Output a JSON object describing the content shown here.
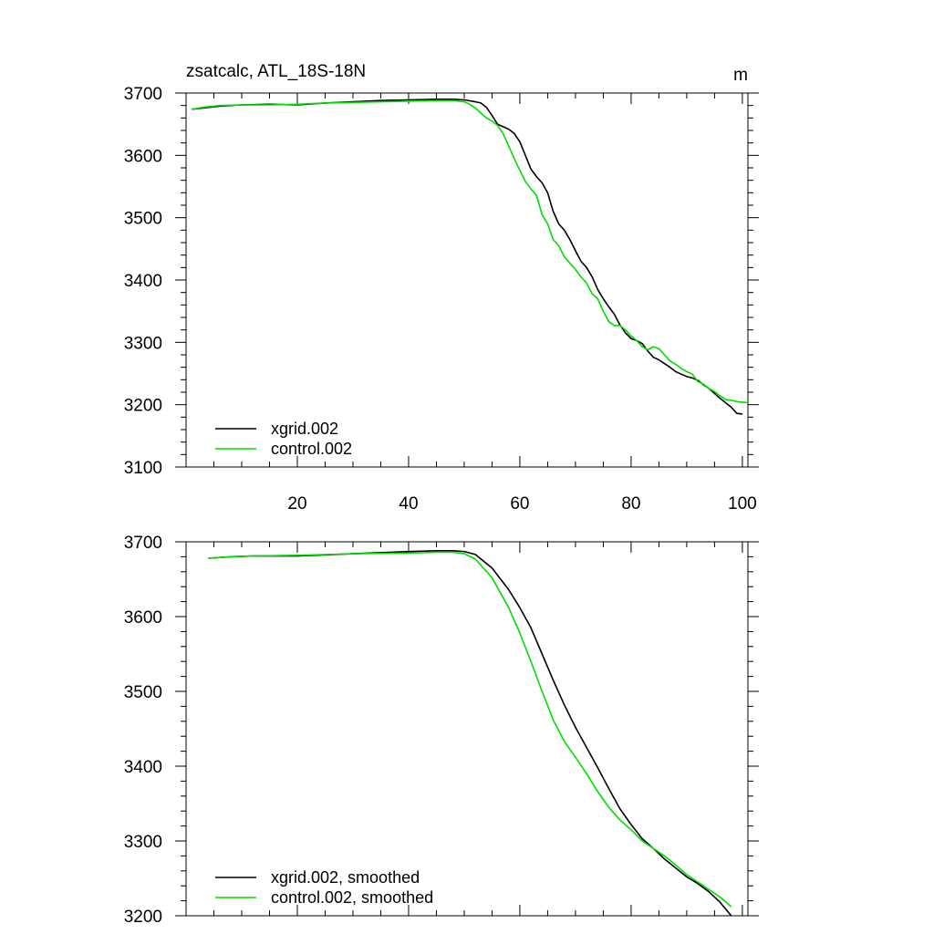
{
  "figure": {
    "title": "zsatcalc, ATL_18S-18N",
    "units": "m"
  },
  "colors": {
    "xgrid": "#000000",
    "control": "#00dd00",
    "axis": "#000000",
    "background": "#ffffff"
  },
  "chart_data": [
    {
      "type": "line",
      "panel": "top",
      "title": "zsatcalc, ATL_18S-18N",
      "units": "m",
      "xlim": [
        0,
        101
      ],
      "ylim": [
        3100,
        3700
      ],
      "xticks": [
        20,
        40,
        60,
        80,
        100
      ],
      "xtick_labels": [
        "20",
        "40",
        "60",
        "80",
        "100"
      ],
      "yticks": [
        3100,
        3200,
        3300,
        3400,
        3500,
        3600,
        3700
      ],
      "ytick_labels": [
        "3100",
        "3200",
        "3300",
        "3400",
        "3500",
        "3600",
        "3700"
      ],
      "legend": "bottom-left",
      "series": [
        {
          "name": "xgrid.002",
          "x": [
            1,
            3,
            6,
            10,
            15,
            20,
            25,
            30,
            35,
            40,
            45,
            48,
            50,
            52,
            53,
            54,
            55,
            56,
            57,
            58,
            59,
            60,
            61,
            62,
            63,
            64,
            65,
            66,
            67,
            68,
            69,
            70,
            71,
            72,
            73,
            74,
            75,
            76,
            77,
            78,
            79,
            80,
            81,
            82,
            83,
            84,
            85,
            86,
            87,
            88,
            89,
            90,
            91,
            92,
            93,
            94,
            95,
            96,
            97,
            98,
            99,
            100
          ],
          "y": [
            3674,
            3676,
            3679,
            3681,
            3682,
            3681,
            3684,
            3686,
            3688,
            3689,
            3690,
            3690,
            3689,
            3686,
            3684,
            3677,
            3664,
            3650,
            3646,
            3642,
            3635,
            3622,
            3600,
            3578,
            3566,
            3556,
            3540,
            3510,
            3490,
            3480,
            3465,
            3447,
            3430,
            3420,
            3405,
            3385,
            3370,
            3357,
            3345,
            3328,
            3315,
            3306,
            3303,
            3298,
            3286,
            3276,
            3272,
            3266,
            3260,
            3253,
            3249,
            3245,
            3243,
            3239,
            3232,
            3226,
            3218,
            3210,
            3203,
            3196,
            3186,
            3185
          ]
        },
        {
          "name": "control.002",
          "x": [
            1,
            3,
            6,
            10,
            15,
            20,
            25,
            30,
            35,
            40,
            45,
            48,
            50,
            51,
            52,
            53,
            54,
            55,
            56,
            57,
            58,
            59,
            60,
            61,
            62,
            63,
            64,
            65,
            66,
            67,
            68,
            69,
            70,
            71,
            72,
            73,
            74,
            75,
            76,
            77,
            78,
            79,
            80,
            81,
            82,
            83,
            84,
            85,
            86,
            87,
            88,
            89,
            90,
            91,
            92,
            93,
            94,
            95,
            96,
            97,
            98,
            99,
            100,
            101
          ],
          "y": [
            3674,
            3677,
            3680,
            3681,
            3681,
            3682,
            3684,
            3685,
            3686,
            3687,
            3688,
            3688,
            3686,
            3682,
            3676,
            3668,
            3660,
            3655,
            3648,
            3635,
            3615,
            3595,
            3576,
            3558,
            3546,
            3536,
            3505,
            3490,
            3465,
            3455,
            3437,
            3427,
            3417,
            3405,
            3395,
            3378,
            3370,
            3350,
            3333,
            3327,
            3327,
            3320,
            3310,
            3303,
            3293,
            3288,
            3293,
            3290,
            3280,
            3270,
            3265,
            3258,
            3253,
            3249,
            3237,
            3233,
            3226,
            3221,
            3214,
            3208,
            3207,
            3205,
            3204,
            3203
          ]
        }
      ]
    },
    {
      "type": "line",
      "panel": "bottom",
      "xlim": [
        0,
        101
      ],
      "ylim": [
        3200,
        3700
      ],
      "xticks": [
        20,
        40,
        60,
        80,
        100
      ],
      "yticks": [
        3200,
        3300,
        3400,
        3500,
        3600,
        3700
      ],
      "ytick_labels": [
        "3200",
        "3300",
        "3400",
        "3500",
        "3600",
        "3700"
      ],
      "legend": "bottom-left",
      "series": [
        {
          "name": "xgrid.002, smoothed",
          "x": [
            4,
            8,
            12,
            20,
            30,
            40,
            45,
            48,
            50,
            52,
            55,
            58,
            60,
            62,
            64,
            66,
            68,
            70,
            72,
            74,
            76,
            78,
            80,
            82,
            84,
            86,
            88,
            90,
            92,
            94,
            96,
            98
          ],
          "y": [
            3678,
            3680,
            3681,
            3681,
            3684,
            3687,
            3688,
            3688,
            3687,
            3683,
            3665,
            3636,
            3612,
            3585,
            3550,
            3515,
            3482,
            3452,
            3425,
            3398,
            3370,
            3343,
            3322,
            3303,
            3290,
            3276,
            3264,
            3252,
            3243,
            3232,
            3218,
            3200
          ]
        },
        {
          "name": "control.002, smoothed",
          "x": [
            4,
            8,
            12,
            20,
            30,
            40,
            45,
            48,
            50,
            52,
            55,
            58,
            60,
            62,
            64,
            66,
            68,
            70,
            72,
            74,
            76,
            78,
            80,
            82,
            84,
            86,
            88,
            90,
            92,
            94,
            96,
            98
          ],
          "y": [
            3678,
            3680,
            3681,
            3682,
            3684,
            3685,
            3686,
            3686,
            3684,
            3677,
            3652,
            3612,
            3578,
            3540,
            3500,
            3462,
            3433,
            3412,
            3390,
            3366,
            3345,
            3328,
            3315,
            3300,
            3290,
            3280,
            3268,
            3255,
            3245,
            3235,
            3225,
            3212
          ]
        }
      ]
    }
  ]
}
